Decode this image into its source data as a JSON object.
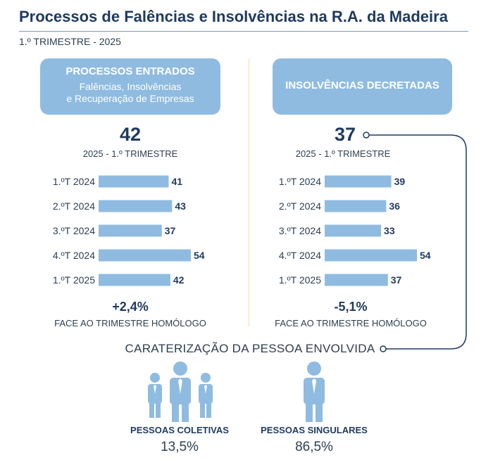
{
  "title": "Processos de Falências e Insolvências na R.A. da Madeira",
  "subtitle": "1.º TRIMESTRE - 2025",
  "left": {
    "header": "PROCESSOS ENTRADOS",
    "header_sub1": "Falências, Insolvências",
    "header_sub2": "e Recuperação de Empresas",
    "big_value": "42",
    "big_sub": "2025 - 1.º TRIMESTRE",
    "change": "+2,4%",
    "change_sub": "FACE AO TRIMESTRE HOMÓLOGO"
  },
  "right": {
    "header": "INSOLVÊNCIAS DECRETADAS",
    "big_value": "37",
    "big_sub": "2025 - 1.º TRIMESTRE",
    "change": "-5,1%",
    "change_sub": "FACE AO TRIMESTRE HOMÓLOGO"
  },
  "chart_data": [
    {
      "type": "bar",
      "orientation": "horizontal",
      "categories": [
        "1.ºT 2024",
        "2.ºT 2024",
        "3.ºT 2024",
        "4.ºT 2024",
        "1.ºT 2025"
      ],
      "values": [
        41,
        43,
        37,
        54,
        42
      ],
      "xlim": [
        0,
        54
      ],
      "grid": false,
      "bar_color": "#8fbbe0"
    },
    {
      "type": "bar",
      "orientation": "horizontal",
      "categories": [
        "1.ºT 2024",
        "2.ºT 2024",
        "3.ºT 2024",
        "4.ºT 2024",
        "1.ºT 2025"
      ],
      "values": [
        39,
        36,
        33,
        54,
        37
      ],
      "xlim": [
        0,
        54
      ],
      "grid": false,
      "bar_color": "#8fbbe0"
    }
  ],
  "caracterizacao": {
    "title": "CARATERIZAÇÃO DA PESSOA ENVOLVIDA",
    "coletivas_label": "PESSOAS COLETIVAS",
    "coletivas_value": "13,5%",
    "singulares_label": "PESSOAS SINGULARES",
    "singulares_value": "86,5%"
  },
  "colors": {
    "accent": "#8fbbe0",
    "text": "#1e3a5f",
    "divider": "#f3d9a4",
    "connector": "#1e3a5f"
  }
}
